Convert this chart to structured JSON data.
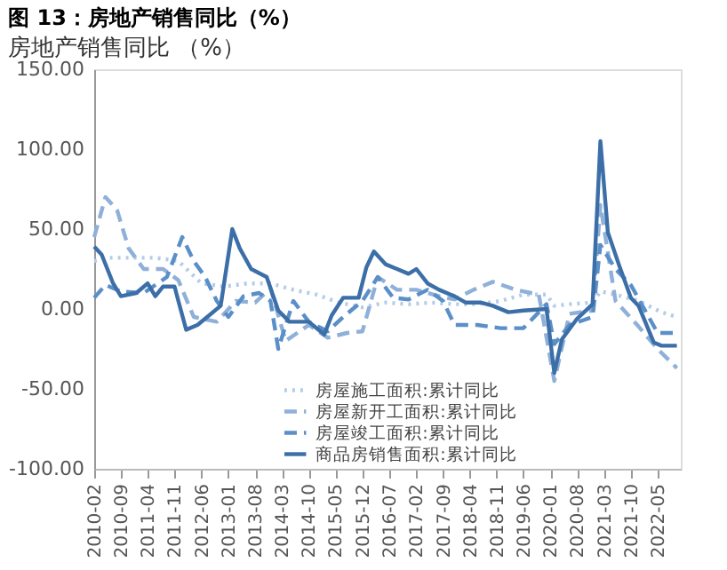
{
  "chart_data": {
    "type": "line",
    "title": "图 13：房地产销售同比（%）",
    "subtitle": "房地产销售同比 （%）",
    "xlim": [
      "2010-02",
      "2022-11"
    ],
    "xticks": [
      "2010-02",
      "2010-09",
      "2011-04",
      "2011-11",
      "2012-06",
      "2013-01",
      "2013-08",
      "2014-03",
      "2014-10",
      "2015-05",
      "2015-12",
      "2016-07",
      "2017-02",
      "2017-09",
      "2018-04",
      "2018-11",
      "2019-06",
      "2020-01",
      "2020-08",
      "2021-03",
      "2021-10",
      "2022-05"
    ],
    "ylim": [
      -100,
      150
    ],
    "yticks": [
      {
        "value": -100,
        "label": "-100.00"
      },
      {
        "value": -50,
        "label": "-50.00"
      },
      {
        "value": 0,
        "label": "0.00"
      },
      {
        "value": 50,
        "label": "50.00"
      },
      {
        "value": 100,
        "label": "100.00"
      },
      {
        "value": 150,
        "label": "150.00"
      }
    ],
    "grid": false,
    "legend": "bottom",
    "series": [
      {
        "name": "房屋施工面积:累计同比",
        "color": "#b4cce8",
        "line_style": "dotted",
        "x": [
          "2010-02",
          "2010-06",
          "2010-12",
          "2011-06",
          "2011-12",
          "2012-06",
          "2012-12",
          "2013-06",
          "2013-12",
          "2014-06",
          "2014-12",
          "2015-06",
          "2015-12",
          "2016-06",
          "2016-12",
          "2017-06",
          "2017-12",
          "2018-06",
          "2018-12",
          "2019-06",
          "2019-12",
          "2020-02",
          "2020-06",
          "2020-12",
          "2021-02",
          "2021-06",
          "2021-12",
          "2022-06",
          "2022-10"
        ],
        "values": [
          30,
          32,
          32,
          32,
          30,
          16,
          14,
          16,
          16,
          12,
          9,
          4,
          1,
          4,
          3,
          4,
          3,
          3,
          5,
          9,
          9,
          2,
          3,
          4,
          11,
          9,
          5,
          -2,
          -5
        ]
      },
      {
        "name": "房屋新开工面积:累计同比",
        "color": "#8fb0d8",
        "line_style": "dashed",
        "x": [
          "2010-02",
          "2010-05",
          "2010-08",
          "2010-11",
          "2011-03",
          "2011-08",
          "2011-12",
          "2012-04",
          "2012-10",
          "2013-03",
          "2013-08",
          "2013-12",
          "2014-04",
          "2014-10",
          "2015-03",
          "2015-08",
          "2015-12",
          "2016-04",
          "2016-09",
          "2017-02",
          "2017-08",
          "2017-12",
          "2018-05",
          "2018-10",
          "2019-04",
          "2019-10",
          "2020-02",
          "2020-06",
          "2020-12",
          "2021-02",
          "2021-06",
          "2021-12",
          "2022-05",
          "2022-10"
        ],
        "values": [
          45,
          70,
          62,
          38,
          25,
          25,
          18,
          -5,
          -8,
          5,
          4,
          13,
          -20,
          -10,
          -18,
          -15,
          -14,
          20,
          12,
          12,
          8,
          6,
          12,
          17,
          12,
          9,
          -45,
          -3,
          -1,
          65,
          5,
          -11,
          -25,
          -37
        ]
      },
      {
        "name": "房屋竣工面积:累计同比",
        "color": "#5b8fc7",
        "line_style": "dashed",
        "x": [
          "2010-02",
          "2010-05",
          "2010-09",
          "2011-03",
          "2011-09",
          "2012-01",
          "2012-04",
          "2012-07",
          "2012-10",
          "2013-01",
          "2013-05",
          "2013-09",
          "2013-12",
          "2014-02",
          "2014-06",
          "2014-10",
          "2015-03",
          "2015-07",
          "2015-12",
          "2016-04",
          "2016-08",
          "2016-12",
          "2017-05",
          "2017-09",
          "2017-12",
          "2018-06",
          "2018-12",
          "2019-06",
          "2019-12",
          "2020-02",
          "2020-06",
          "2020-12",
          "2021-02",
          "2021-06",
          "2021-10",
          "2022-05",
          "2022-10"
        ],
        "values": [
          7,
          15,
          11,
          10,
          20,
          45,
          30,
          20,
          5,
          -5,
          8,
          10,
          5,
          -25,
          5,
          -8,
          -14,
          -5,
          5,
          20,
          7,
          6,
          12,
          5,
          -10,
          -10,
          -12,
          -12,
          3,
          -22,
          -10,
          -5,
          40,
          25,
          15,
          -15,
          -15
        ]
      },
      {
        "name": "商品房销售面积:累计同比",
        "color": "#3c6fa8",
        "line_style": "solid",
        "x": [
          "2010-02",
          "2010-04",
          "2010-07",
          "2010-09",
          "2011-01",
          "2011-04",
          "2011-06",
          "2011-08",
          "2011-11",
          "2011-12",
          "2012-02",
          "2012-05",
          "2012-08",
          "2012-11",
          "2013-02",
          "2013-04",
          "2013-07",
          "2013-11",
          "2014-02",
          "2014-05",
          "2014-10",
          "2015-02",
          "2015-04",
          "2015-07",
          "2015-11",
          "2016-01",
          "2016-03",
          "2016-06",
          "2016-09",
          "2016-12",
          "2017-02",
          "2017-05",
          "2017-08",
          "2017-12",
          "2018-03",
          "2018-07",
          "2018-10",
          "2019-02",
          "2019-06",
          "2019-12",
          "2020-02",
          "2020-04",
          "2020-08",
          "2020-12",
          "2021-02",
          "2021-04",
          "2021-07",
          "2021-10",
          "2021-12",
          "2022-04",
          "2022-06",
          "2022-10"
        ],
        "values": [
          39,
          34,
          16,
          8,
          10,
          16,
          8,
          14,
          14,
          5,
          -13,
          -10,
          -4,
          2,
          50,
          38,
          25,
          20,
          -1,
          -8,
          -8,
          -16,
          -4,
          7,
          7,
          26,
          36,
          28,
          25,
          22,
          25,
          16,
          12,
          8,
          4,
          4,
          2,
          -2,
          -1,
          0,
          -40,
          -19,
          -6,
          3,
          105,
          48,
          27,
          7,
          2,
          -21,
          -23,
          -23
        ]
      }
    ]
  }
}
